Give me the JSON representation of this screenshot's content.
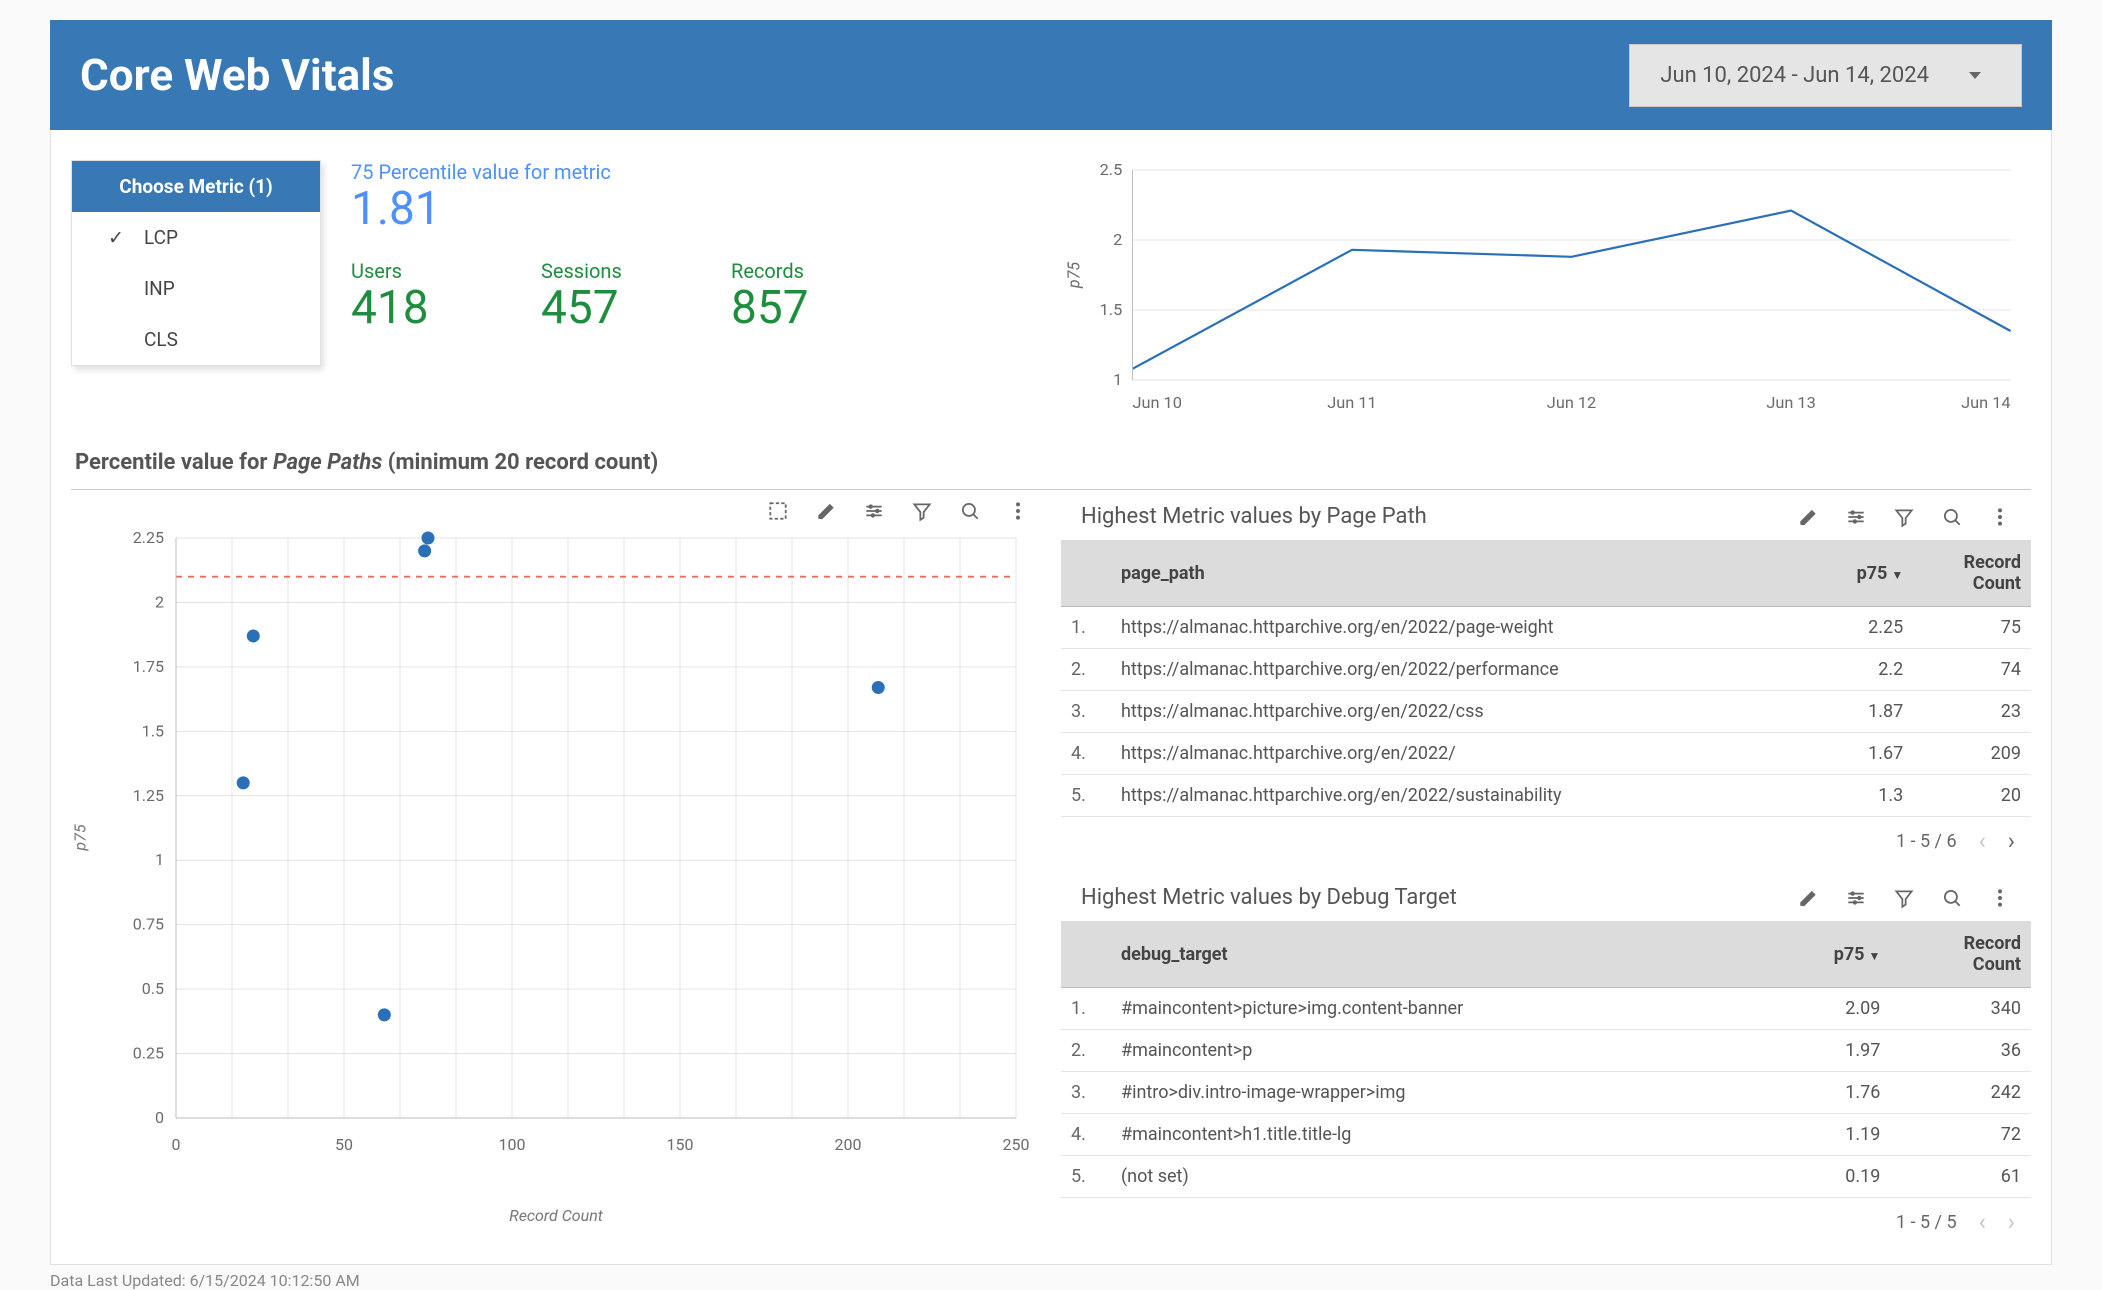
{
  "header": {
    "title": "Core Web Vitals",
    "date_range": "Jun 10, 2024 - Jun 14, 2024"
  },
  "metric_selector": {
    "header": "Choose Metric (1)",
    "options": [
      {
        "label": "LCP",
        "selected": true
      },
      {
        "label": "INP",
        "selected": false
      },
      {
        "label": "CLS",
        "selected": false
      }
    ]
  },
  "kpi": {
    "percentile_label": "75 Percentile value for metric",
    "percentile_value": "1.81",
    "users_label": "Users",
    "users_value": "418",
    "sessions_label": "Sessions",
    "sessions_value": "457",
    "records_label": "Records",
    "records_value": "857"
  },
  "line_chart": {
    "type": "line",
    "y_label": "p75",
    "y_label_fontstyle": "italic",
    "ylim": [
      1,
      2.5
    ],
    "ytick_step": 0.5,
    "x_categories": [
      "Jun 10",
      "Jun 11",
      "Jun 12",
      "Jun 13",
      "Jun 14"
    ],
    "values": [
      1.08,
      1.93,
      1.88,
      2.21,
      1.35
    ],
    "line_color": "#2a70b8",
    "line_width": 2.2,
    "grid_color": "#e5e5e5",
    "axis_color": "#bdbdbd",
    "background_color": "#ffffff",
    "label_color": "#6b6b6b",
    "label_fontsize": 16
  },
  "section_title": {
    "prefix": "Percentile value for ",
    "em": "Page Paths",
    "suffix": " (minimum 20 record count)"
  },
  "scatter": {
    "type": "scatter",
    "x_label": "Record Count",
    "y_label": "p75",
    "xlim": [
      0,
      250
    ],
    "xtick_step": 50,
    "ylim": [
      0,
      2.25
    ],
    "ytick_step": 0.25,
    "points": [
      {
        "x": 75,
        "y": 2.25
      },
      {
        "x": 74,
        "y": 2.2
      },
      {
        "x": 23,
        "y": 1.87
      },
      {
        "x": 209,
        "y": 1.67
      },
      {
        "x": 20,
        "y": 1.3
      },
      {
        "x": 62,
        "y": 0.4
      }
    ],
    "point_color": "#2a70b8",
    "point_radius": 6.5,
    "reference_line_y": 2.1,
    "reference_line_color": "#ec6b61",
    "reference_line_dash": "6 6",
    "grid_color": "#e3e3e3",
    "inner_grid_count_x": 2,
    "axis_color": "#bdbdbd",
    "background_color": "#ffffff",
    "label_color": "#6b6b6b",
    "label_fontsize": 16
  },
  "table_page": {
    "title": "Highest Metric values by Page Path",
    "columns": [
      "page_path",
      "p75",
      "Record Count"
    ],
    "sort_col": 1,
    "sort_dir": "desc",
    "rows": [
      [
        "https://almanac.httparchive.org/en/2022/page-weight",
        "2.25",
        "75"
      ],
      [
        "https://almanac.httparchive.org/en/2022/performance",
        "2.2",
        "74"
      ],
      [
        "https://almanac.httparchive.org/en/2022/css",
        "1.87",
        "23"
      ],
      [
        "https://almanac.httparchive.org/en/2022/",
        "1.67",
        "209"
      ],
      [
        "https://almanac.httparchive.org/en/2022/sustainability",
        "1.3",
        "20"
      ]
    ],
    "pager": "1 - 5 / 6",
    "prev_enabled": false,
    "next_enabled": true
  },
  "table_target": {
    "title": "Highest Metric values by Debug Target",
    "columns": [
      "debug_target",
      "p75",
      "Record Count"
    ],
    "sort_col": 1,
    "sort_dir": "desc",
    "rows": [
      [
        "#maincontent>picture>img.content-banner",
        "2.09",
        "340"
      ],
      [
        "#maincontent>p",
        "1.97",
        "36"
      ],
      [
        "#intro>div.intro-image-wrapper>img",
        "1.76",
        "242"
      ],
      [
        "#maincontent>h1.title.title-lg",
        "1.19",
        "72"
      ],
      [
        "(not set)",
        "0.19",
        "61"
      ]
    ],
    "pager": "1 - 5 / 5",
    "prev_enabled": false,
    "next_enabled": false
  },
  "footer": "Data Last Updated: 6/15/2024 10:12:50 AM",
  "toolbar_icons": [
    "select",
    "edit",
    "tune",
    "filter",
    "zoom",
    "more"
  ],
  "colors": {
    "brand": "#3778b5",
    "link_blue": "#4d90fe",
    "green": "#1e8e3e"
  }
}
